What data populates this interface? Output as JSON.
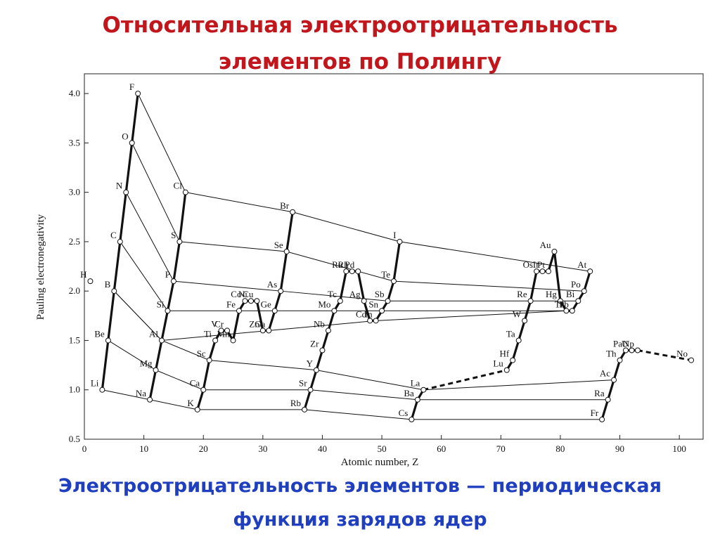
{
  "title": "Относительная электроотрицательность элементов по Полингу",
  "caption": "Электроотрицательность элементов — периодическая функция зарядов ядер",
  "chart_data": {
    "type": "scatter",
    "xlabel": "Atomic number, Z",
    "ylabel": "Pauling electronegativity",
    "xlim": [
      0,
      104
    ],
    "ylim": [
      0.5,
      4.2
    ],
    "xticks": [
      0,
      10,
      20,
      30,
      40,
      50,
      60,
      70,
      80,
      90,
      100
    ],
    "yticks": [
      0.5,
      {
        "value": 1,
        "label": "1.0"
      },
      1.5,
      {
        "value": 2,
        "label": "2.0"
      },
      2.5,
      {
        "value": 3,
        "label": "3.0"
      },
      3.5,
      {
        "value": 4,
        "label": "4.0"
      }
    ],
    "series": [
      {
        "labels": [
          "H"
        ],
        "x": [
          1
        ],
        "values": [
          2.1
        ]
      },
      {
        "labels": [
          "Li",
          "Be",
          "B",
          "C",
          "N",
          "O",
          "F"
        ],
        "x": [
          3,
          4,
          5,
          6,
          7,
          8,
          9
        ],
        "values": [
          1.0,
          1.5,
          2.0,
          2.5,
          3.0,
          3.5,
          4.0
        ]
      },
      {
        "labels": [
          "Na",
          "Mg",
          "Al",
          "Si",
          "P",
          "S",
          "Cl"
        ],
        "x": [
          11,
          12,
          13,
          14,
          15,
          16,
          17
        ],
        "values": [
          0.9,
          1.2,
          1.5,
          1.8,
          2.1,
          2.5,
          3.0
        ]
      },
      {
        "labels": [
          "K",
          "Ca",
          "Sc",
          "Ti",
          "V",
          "Cr",
          "Mn",
          "Fe",
          "Co",
          "Ni",
          "Cu",
          "Zn",
          "Ga",
          "Ge",
          "As",
          "Se",
          "Br"
        ],
        "x": [
          19,
          20,
          21,
          22,
          23,
          24,
          25,
          26,
          27,
          28,
          29,
          30,
          31,
          32,
          33,
          34,
          35
        ],
        "values": [
          0.8,
          1.0,
          1.3,
          1.5,
          1.6,
          1.6,
          1.5,
          1.8,
          1.9,
          1.9,
          1.9,
          1.6,
          1.6,
          1.8,
          2.0,
          2.4,
          2.8
        ]
      },
      {
        "labels": [
          "Rb",
          "Sr",
          "Y",
          "Zr",
          "Nb",
          "Mo",
          "Tc",
          "Ru",
          "Rh",
          "Pd",
          "Ag",
          "Cd",
          "In",
          "Sn",
          "Sb",
          "Te",
          "I"
        ],
        "x": [
          37,
          38,
          39,
          40,
          41,
          42,
          43,
          44,
          45,
          46,
          47,
          48,
          49,
          50,
          51,
          52,
          53
        ],
        "values": [
          0.8,
          1.0,
          1.2,
          1.4,
          1.6,
          1.8,
          1.9,
          2.2,
          2.2,
          2.2,
          1.9,
          1.7,
          1.7,
          1.8,
          1.9,
          2.1,
          2.5
        ]
      },
      {
        "labels": [
          "Cs",
          "Ba",
          "La",
          "Lu",
          "Hf",
          "Ta",
          "W",
          "Re",
          "Os",
          "Ir",
          "Pt",
          "Au",
          "Hg",
          "Tl",
          "Pb",
          "Bi",
          "Po",
          "At"
        ],
        "x": [
          55,
          56,
          57,
          71,
          72,
          73,
          74,
          75,
          76,
          77,
          78,
          79,
          80,
          81,
          82,
          83,
          84,
          85
        ],
        "values": [
          0.7,
          0.9,
          1.0,
          1.2,
          1.3,
          1.5,
          1.7,
          1.9,
          2.2,
          2.2,
          2.2,
          2.4,
          1.9,
          1.8,
          1.8,
          1.9,
          2.0,
          2.2
        ]
      },
      {
        "labels": [
          "Fr",
          "Ra",
          "Ac",
          "Th",
          "Pa",
          "U",
          "Np",
          "No"
        ],
        "x": [
          87,
          88,
          89,
          90,
          91,
          92,
          93,
          102
        ],
        "values": [
          0.7,
          0.9,
          1.1,
          1.3,
          1.4,
          1.4,
          1.4,
          1.3
        ]
      }
    ]
  }
}
